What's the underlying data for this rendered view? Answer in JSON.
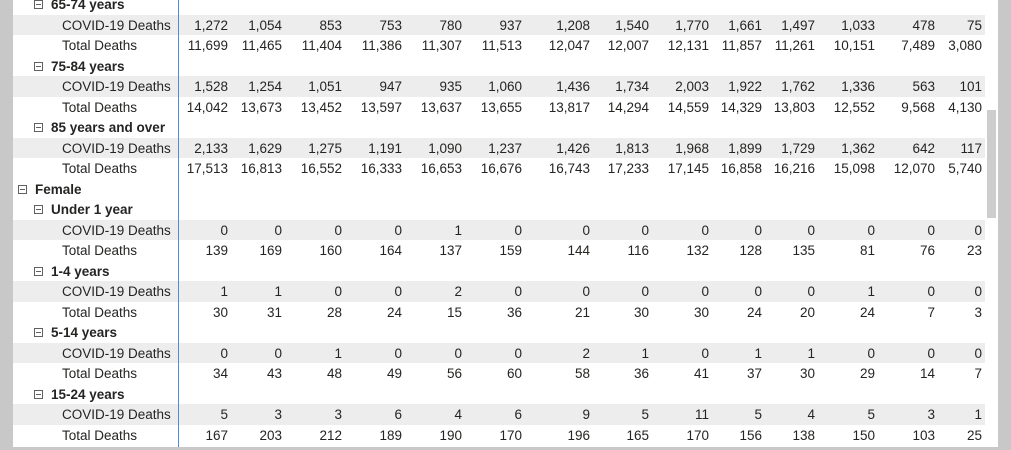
{
  "table": {
    "rows": [
      {
        "type": "group",
        "label": "65-74 years"
      },
      {
        "type": "metric",
        "label": "COVID-19 Deaths",
        "values": [
          "1,272",
          "1,054",
          "853",
          "753",
          "780",
          "937",
          "1,208",
          "1,540",
          "1,770",
          "1,661",
          "1,497",
          "1,033",
          "478",
          "75"
        ]
      },
      {
        "type": "metric",
        "label": "Total Deaths",
        "values": [
          "11,699",
          "11,465",
          "11,404",
          "11,386",
          "11,307",
          "11,513",
          "12,047",
          "12,007",
          "12,131",
          "11,857",
          "11,261",
          "10,151",
          "7,489",
          "3,080"
        ]
      },
      {
        "type": "group",
        "label": "75-84 years"
      },
      {
        "type": "metric",
        "label": "COVID-19 Deaths",
        "values": [
          "1,528",
          "1,254",
          "1,051",
          "947",
          "935",
          "1,060",
          "1,436",
          "1,734",
          "2,003",
          "1,922",
          "1,762",
          "1,336",
          "563",
          "101"
        ]
      },
      {
        "type": "metric",
        "label": "Total Deaths",
        "values": [
          "14,042",
          "13,673",
          "13,452",
          "13,597",
          "13,637",
          "13,655",
          "13,817",
          "14,294",
          "14,559",
          "14,329",
          "13,803",
          "12,552",
          "9,568",
          "4,130"
        ]
      },
      {
        "type": "group",
        "label": "85 years and over"
      },
      {
        "type": "metric",
        "label": "COVID-19 Deaths",
        "values": [
          "2,133",
          "1,629",
          "1,275",
          "1,191",
          "1,090",
          "1,237",
          "1,426",
          "1,813",
          "1,968",
          "1,899",
          "1,729",
          "1,362",
          "642",
          "117"
        ]
      },
      {
        "type": "metric",
        "label": "Total Deaths",
        "values": [
          "17,513",
          "16,813",
          "16,552",
          "16,333",
          "16,653",
          "16,676",
          "16,743",
          "17,233",
          "17,145",
          "16,858",
          "16,216",
          "15,098",
          "12,070",
          "5,740"
        ]
      },
      {
        "type": "sex",
        "label": "Female"
      },
      {
        "type": "group",
        "label": "Under 1 year"
      },
      {
        "type": "metric",
        "label": "COVID-19 Deaths",
        "values": [
          "0",
          "0",
          "0",
          "0",
          "1",
          "0",
          "0",
          "0",
          "0",
          "0",
          "0",
          "0",
          "0",
          "0"
        ]
      },
      {
        "type": "metric",
        "label": "Total Deaths",
        "values": [
          "139",
          "169",
          "160",
          "164",
          "137",
          "159",
          "144",
          "116",
          "132",
          "128",
          "135",
          "81",
          "76",
          "23"
        ]
      },
      {
        "type": "group",
        "label": "1-4 years"
      },
      {
        "type": "metric",
        "label": "COVID-19 Deaths",
        "values": [
          "1",
          "1",
          "0",
          "0",
          "2",
          "0",
          "0",
          "0",
          "0",
          "0",
          "0",
          "1",
          "0",
          "0"
        ]
      },
      {
        "type": "metric",
        "label": "Total Deaths",
        "values": [
          "30",
          "31",
          "28",
          "24",
          "15",
          "36",
          "21",
          "30",
          "30",
          "24",
          "20",
          "24",
          "7",
          "3"
        ]
      },
      {
        "type": "group",
        "label": "5-14 years"
      },
      {
        "type": "metric",
        "label": "COVID-19 Deaths",
        "values": [
          "0",
          "0",
          "1",
          "0",
          "0",
          "0",
          "2",
          "1",
          "0",
          "1",
          "1",
          "0",
          "0",
          "0"
        ]
      },
      {
        "type": "metric",
        "label": "Total Deaths",
        "values": [
          "34",
          "43",
          "48",
          "49",
          "56",
          "60",
          "58",
          "36",
          "41",
          "37",
          "30",
          "29",
          "14",
          "7"
        ]
      },
      {
        "type": "group",
        "label": "15-24 years"
      },
      {
        "type": "metric",
        "label": "COVID-19 Deaths",
        "values": [
          "5",
          "3",
          "3",
          "6",
          "4",
          "6",
          "9",
          "5",
          "11",
          "5",
          "4",
          "5",
          "3",
          "1"
        ]
      },
      {
        "type": "metric",
        "label": "Total Deaths",
        "values": [
          "167",
          "203",
          "212",
          "189",
          "190",
          "170",
          "196",
          "165",
          "170",
          "156",
          "138",
          "150",
          "103",
          "25"
        ]
      }
    ]
  },
  "icons": {
    "expand_toggle": "collapse-box-icon"
  },
  "colors": {
    "row_shade": "#ededed",
    "divider": "#4a90d9",
    "frame": "#c8c8c8"
  }
}
